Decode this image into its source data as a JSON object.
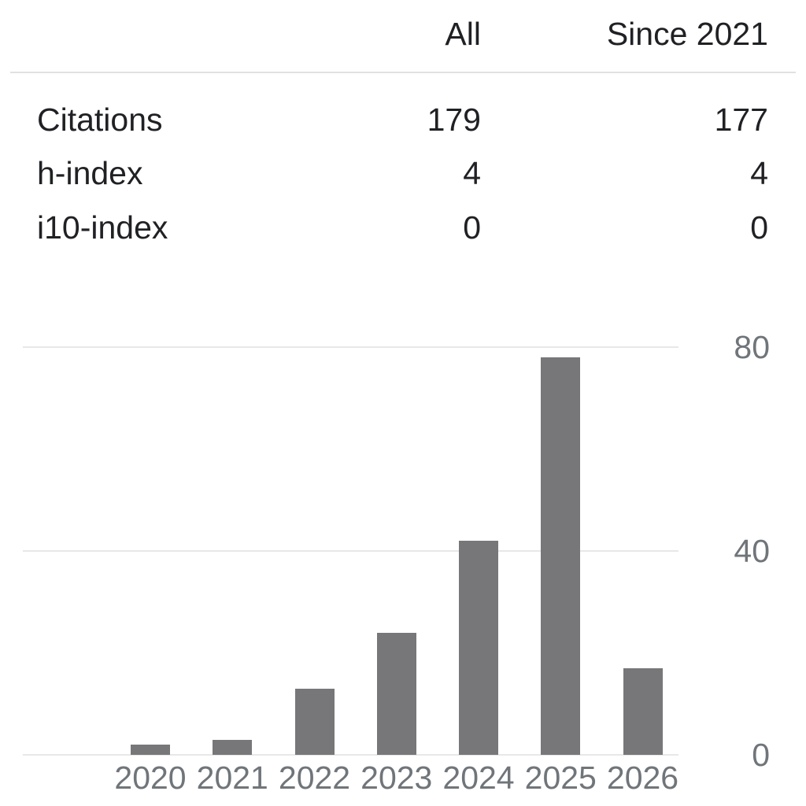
{
  "table": {
    "columns": [
      {
        "label": "All"
      },
      {
        "label": "Since 2021"
      }
    ],
    "rows": [
      {
        "label": "Citations",
        "values": [
          "179",
          "177"
        ]
      },
      {
        "label": "h-index",
        "values": [
          "4",
          "4"
        ]
      },
      {
        "label": "i10-index",
        "values": [
          "0",
          "0"
        ]
      }
    ]
  },
  "chart_data": {
    "type": "bar",
    "categories": [
      "2020",
      "2021",
      "2022",
      "2023",
      "2024",
      "2025",
      "2026"
    ],
    "values": [
      2,
      3,
      13,
      24,
      42,
      78,
      17
    ],
    "title": "",
    "xlabel": "",
    "ylabel": "",
    "ylim": [
      0,
      80
    ],
    "yticks": [
      0,
      40,
      80
    ],
    "ytick_labels": [
      "0",
      "40",
      "80"
    ],
    "ytick_side": "right",
    "grid": "horizontal",
    "legend": "none",
    "bar_color": "#777779"
  },
  "colors": {
    "background": "#ffffff",
    "table-text": "#202124",
    "axis-text": "#70757a",
    "bar": "#777779",
    "gridline": "#e8e8e8",
    "divider": "#e1e1e1"
  }
}
